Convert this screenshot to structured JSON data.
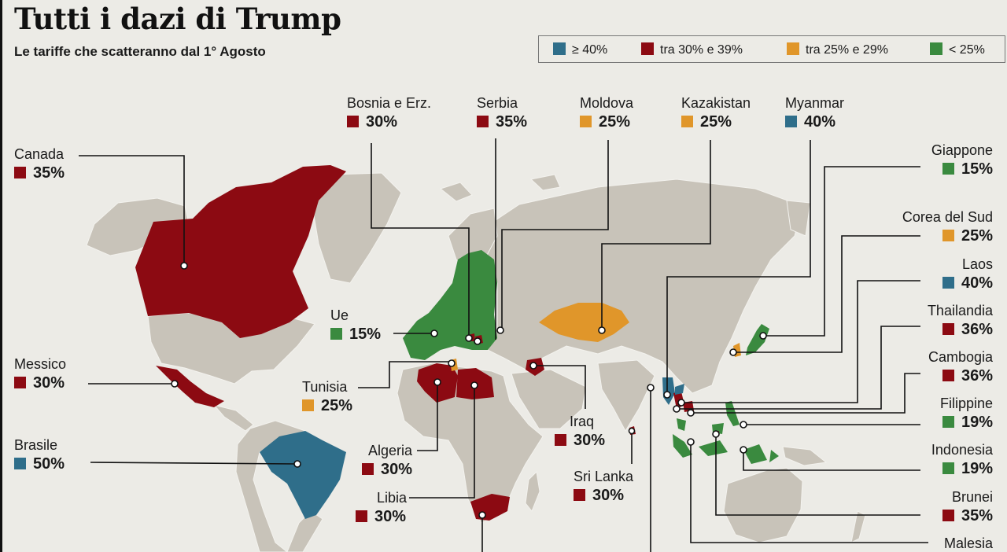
{
  "title": "Tutti i dazi di Trump",
  "subtitle": "Le tariffe che scatteranno dal 1° Agosto",
  "colors": {
    "blue": "#2f6e8a",
    "red": "#8c0a12",
    "orange": "#e0962a",
    "green": "#3a8a3f",
    "land": "#c8c3b9",
    "background": "#ecebe6"
  },
  "legend": [
    {
      "label": "≥ 40%",
      "color": "#2f6e8a"
    },
    {
      "label": "tra 30% e 39%",
      "color": "#8c0a12"
    },
    {
      "label": "tra 25% e 29%",
      "color": "#e0962a"
    },
    {
      "label": "< 25%",
      "color": "#3a8a3f"
    }
  ],
  "countries": {
    "canada": {
      "name": "Canada",
      "rate": "35%"
    },
    "messico": {
      "name": "Messico",
      "rate": "30%"
    },
    "brasile": {
      "name": "Brasile",
      "rate": "50%"
    },
    "ue": {
      "name": "Ue",
      "rate": "15%"
    },
    "tunisia": {
      "name": "Tunisia",
      "rate": "25%"
    },
    "algeria": {
      "name": "Algeria",
      "rate": "30%"
    },
    "libia": {
      "name": "Libia",
      "rate": "30%"
    },
    "iraq": {
      "name": "Iraq",
      "rate": "30%"
    },
    "srilanka": {
      "name": "Sri Lanka",
      "rate": "30%"
    },
    "bosnia": {
      "name": "Bosnia e Erz.",
      "rate": "30%"
    },
    "serbia": {
      "name": "Serbia",
      "rate": "35%"
    },
    "moldova": {
      "name": "Moldova",
      "rate": "25%"
    },
    "kazakistan": {
      "name": "Kazakistan",
      "rate": "25%"
    },
    "myanmar": {
      "name": "Myanmar",
      "rate": "40%"
    },
    "giappone": {
      "name": "Giappone",
      "rate": "15%"
    },
    "corea": {
      "name": "Corea del Sud",
      "rate": "25%"
    },
    "laos": {
      "name": "Laos",
      "rate": "40%"
    },
    "thailandia": {
      "name": "Thailandia",
      "rate": "36%"
    },
    "cambogia": {
      "name": "Cambogia",
      "rate": "36%"
    },
    "filippine": {
      "name": "Filippine",
      "rate": "19%"
    },
    "indonesia": {
      "name": "Indonesia",
      "rate": "19%"
    },
    "brunei": {
      "name": "Brunei",
      "rate": "35%"
    },
    "malesia": {
      "name": "Malesia"
    }
  }
}
